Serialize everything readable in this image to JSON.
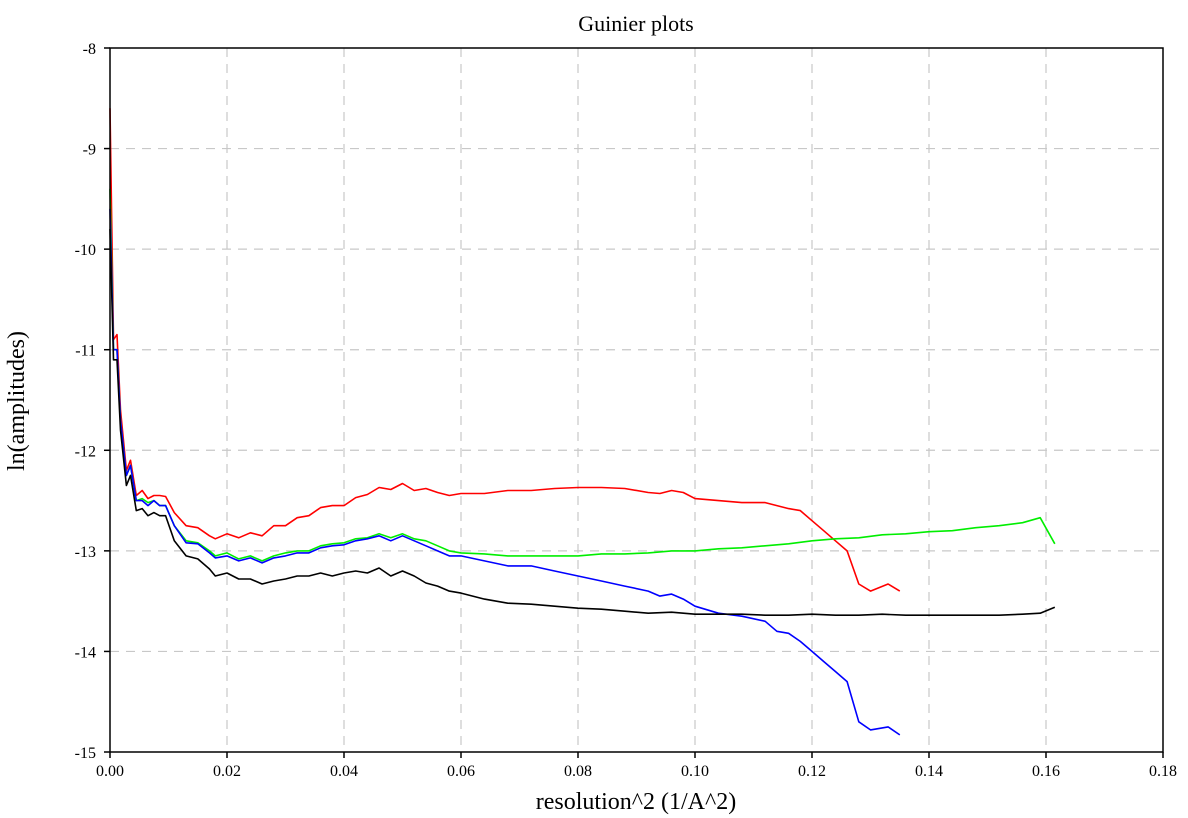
{
  "chart_data": {
    "type": "line",
    "title": "Guinier plots",
    "xlabel": "resolution^2 (1/A^2)",
    "ylabel": "ln(amplitudes)",
    "xlim": [
      0.0,
      0.18
    ],
    "ylim": [
      -15,
      -8
    ],
    "grid": true,
    "x_ticks": [
      "0.00",
      "0.02",
      "0.04",
      "0.06",
      "0.08",
      "0.10",
      "0.12",
      "0.14",
      "0.16",
      "0.18"
    ],
    "y_ticks": [
      "-8",
      "-9",
      "-10",
      "-11",
      "-12",
      "-13",
      "-14",
      "-15"
    ],
    "series": [
      {
        "color": "#ff0000",
        "points": [
          [
            0.0,
            -8.6
          ],
          [
            0.0006,
            -10.9
          ],
          [
            0.0012,
            -10.85
          ],
          [
            0.0018,
            -11.6
          ],
          [
            0.0028,
            -12.2
          ],
          [
            0.0035,
            -12.1
          ],
          [
            0.0045,
            -12.45
          ],
          [
            0.0055,
            -12.4
          ],
          [
            0.0065,
            -12.48
          ],
          [
            0.0075,
            -12.45
          ],
          [
            0.0085,
            -12.45
          ],
          [
            0.0095,
            -12.46
          ],
          [
            0.011,
            -12.62
          ],
          [
            0.013,
            -12.75
          ],
          [
            0.015,
            -12.77
          ],
          [
            0.017,
            -12.85
          ],
          [
            0.018,
            -12.88
          ],
          [
            0.02,
            -12.83
          ],
          [
            0.022,
            -12.87
          ],
          [
            0.024,
            -12.82
          ],
          [
            0.026,
            -12.85
          ],
          [
            0.028,
            -12.75
          ],
          [
            0.03,
            -12.75
          ],
          [
            0.032,
            -12.67
          ],
          [
            0.034,
            -12.65
          ],
          [
            0.036,
            -12.57
          ],
          [
            0.038,
            -12.55
          ],
          [
            0.04,
            -12.55
          ],
          [
            0.042,
            -12.47
          ],
          [
            0.044,
            -12.44
          ],
          [
            0.046,
            -12.37
          ],
          [
            0.048,
            -12.39
          ],
          [
            0.05,
            -12.33
          ],
          [
            0.052,
            -12.4
          ],
          [
            0.054,
            -12.38
          ],
          [
            0.056,
            -12.42
          ],
          [
            0.058,
            -12.45
          ],
          [
            0.06,
            -12.43
          ],
          [
            0.064,
            -12.43
          ],
          [
            0.068,
            -12.4
          ],
          [
            0.072,
            -12.4
          ],
          [
            0.076,
            -12.38
          ],
          [
            0.08,
            -12.37
          ],
          [
            0.084,
            -12.37
          ],
          [
            0.088,
            -12.38
          ],
          [
            0.092,
            -12.42
          ],
          [
            0.094,
            -12.43
          ],
          [
            0.096,
            -12.4
          ],
          [
            0.098,
            -12.42
          ],
          [
            0.1,
            -12.48
          ],
          [
            0.104,
            -12.5
          ],
          [
            0.108,
            -12.52
          ],
          [
            0.112,
            -12.52
          ],
          [
            0.114,
            -12.55
          ],
          [
            0.116,
            -12.58
          ],
          [
            0.118,
            -12.6
          ],
          [
            0.12,
            -12.7
          ],
          [
            0.122,
            -12.8
          ],
          [
            0.124,
            -12.9
          ],
          [
            0.126,
            -13.0
          ],
          [
            0.128,
            -13.33
          ],
          [
            0.13,
            -13.4
          ],
          [
            0.133,
            -13.33
          ],
          [
            0.135,
            -13.4
          ]
        ]
      },
      {
        "color": "#00ee00",
        "points": [
          [
            0.0,
            -9.4
          ],
          [
            0.0006,
            -11.0
          ],
          [
            0.0012,
            -11.0
          ],
          [
            0.0018,
            -11.7
          ],
          [
            0.0028,
            -12.25
          ],
          [
            0.0035,
            -12.15
          ],
          [
            0.0045,
            -12.5
          ],
          [
            0.0055,
            -12.48
          ],
          [
            0.0065,
            -12.52
          ],
          [
            0.0075,
            -12.5
          ],
          [
            0.0085,
            -12.55
          ],
          [
            0.0095,
            -12.55
          ],
          [
            0.011,
            -12.75
          ],
          [
            0.013,
            -12.9
          ],
          [
            0.015,
            -12.92
          ],
          [
            0.017,
            -13.0
          ],
          [
            0.018,
            -13.05
          ],
          [
            0.02,
            -13.02
          ],
          [
            0.022,
            -13.08
          ],
          [
            0.024,
            -13.05
          ],
          [
            0.026,
            -13.1
          ],
          [
            0.028,
            -13.05
          ],
          [
            0.03,
            -13.02
          ],
          [
            0.032,
            -13.0
          ],
          [
            0.034,
            -13.0
          ],
          [
            0.036,
            -12.95
          ],
          [
            0.038,
            -12.93
          ],
          [
            0.04,
            -12.92
          ],
          [
            0.042,
            -12.88
          ],
          [
            0.044,
            -12.87
          ],
          [
            0.046,
            -12.83
          ],
          [
            0.048,
            -12.87
          ],
          [
            0.05,
            -12.83
          ],
          [
            0.052,
            -12.88
          ],
          [
            0.054,
            -12.9
          ],
          [
            0.056,
            -12.95
          ],
          [
            0.058,
            -13.0
          ],
          [
            0.06,
            -13.02
          ],
          [
            0.064,
            -13.03
          ],
          [
            0.068,
            -13.05
          ],
          [
            0.072,
            -13.05
          ],
          [
            0.076,
            -13.05
          ],
          [
            0.08,
            -13.05
          ],
          [
            0.084,
            -13.03
          ],
          [
            0.088,
            -13.03
          ],
          [
            0.092,
            -13.02
          ],
          [
            0.096,
            -13.0
          ],
          [
            0.1,
            -13.0
          ],
          [
            0.104,
            -12.98
          ],
          [
            0.108,
            -12.97
          ],
          [
            0.112,
            -12.95
          ],
          [
            0.116,
            -12.93
          ],
          [
            0.12,
            -12.9
          ],
          [
            0.124,
            -12.88
          ],
          [
            0.128,
            -12.87
          ],
          [
            0.132,
            -12.84
          ],
          [
            0.136,
            -12.83
          ],
          [
            0.14,
            -12.81
          ],
          [
            0.144,
            -12.8
          ],
          [
            0.148,
            -12.77
          ],
          [
            0.152,
            -12.75
          ],
          [
            0.156,
            -12.72
          ],
          [
            0.159,
            -12.67
          ],
          [
            0.1615,
            -12.93
          ]
        ]
      },
      {
        "color": "#0000ff",
        "points": [
          [
            0.0,
            -9.6
          ],
          [
            0.0006,
            -11.0
          ],
          [
            0.0012,
            -11.0
          ],
          [
            0.0018,
            -11.7
          ],
          [
            0.0028,
            -12.25
          ],
          [
            0.0035,
            -12.15
          ],
          [
            0.0045,
            -12.5
          ],
          [
            0.0055,
            -12.5
          ],
          [
            0.0065,
            -12.55
          ],
          [
            0.0075,
            -12.5
          ],
          [
            0.0085,
            -12.55
          ],
          [
            0.0095,
            -12.55
          ],
          [
            0.011,
            -12.75
          ],
          [
            0.013,
            -12.92
          ],
          [
            0.015,
            -12.93
          ],
          [
            0.017,
            -13.02
          ],
          [
            0.018,
            -13.07
          ],
          [
            0.02,
            -13.05
          ],
          [
            0.022,
            -13.1
          ],
          [
            0.024,
            -13.07
          ],
          [
            0.026,
            -13.12
          ],
          [
            0.028,
            -13.07
          ],
          [
            0.03,
            -13.05
          ],
          [
            0.032,
            -13.02
          ],
          [
            0.034,
            -13.02
          ],
          [
            0.036,
            -12.97
          ],
          [
            0.038,
            -12.95
          ],
          [
            0.04,
            -12.94
          ],
          [
            0.042,
            -12.9
          ],
          [
            0.044,
            -12.88
          ],
          [
            0.046,
            -12.85
          ],
          [
            0.048,
            -12.9
          ],
          [
            0.05,
            -12.85
          ],
          [
            0.052,
            -12.9
          ],
          [
            0.054,
            -12.95
          ],
          [
            0.056,
            -13.0
          ],
          [
            0.058,
            -13.05
          ],
          [
            0.06,
            -13.05
          ],
          [
            0.064,
            -13.1
          ],
          [
            0.068,
            -13.15
          ],
          [
            0.072,
            -13.15
          ],
          [
            0.076,
            -13.2
          ],
          [
            0.08,
            -13.25
          ],
          [
            0.084,
            -13.3
          ],
          [
            0.088,
            -13.35
          ],
          [
            0.092,
            -13.4
          ],
          [
            0.094,
            -13.45
          ],
          [
            0.096,
            -13.43
          ],
          [
            0.098,
            -13.48
          ],
          [
            0.1,
            -13.55
          ],
          [
            0.104,
            -13.62
          ],
          [
            0.108,
            -13.65
          ],
          [
            0.112,
            -13.7
          ],
          [
            0.114,
            -13.8
          ],
          [
            0.116,
            -13.82
          ],
          [
            0.118,
            -13.9
          ],
          [
            0.12,
            -14.0
          ],
          [
            0.122,
            -14.1
          ],
          [
            0.124,
            -14.2
          ],
          [
            0.126,
            -14.3
          ],
          [
            0.128,
            -14.7
          ],
          [
            0.13,
            -14.78
          ],
          [
            0.133,
            -14.75
          ],
          [
            0.135,
            -14.83
          ]
        ]
      },
      {
        "color": "#000000",
        "points": [
          [
            0.0,
            -9.8
          ],
          [
            0.0006,
            -11.1
          ],
          [
            0.0012,
            -11.1
          ],
          [
            0.0018,
            -11.8
          ],
          [
            0.0028,
            -12.35
          ],
          [
            0.0035,
            -12.25
          ],
          [
            0.0045,
            -12.6
          ],
          [
            0.0055,
            -12.58
          ],
          [
            0.0065,
            -12.65
          ],
          [
            0.0075,
            -12.62
          ],
          [
            0.0085,
            -12.65
          ],
          [
            0.0095,
            -12.65
          ],
          [
            0.011,
            -12.9
          ],
          [
            0.013,
            -13.05
          ],
          [
            0.015,
            -13.08
          ],
          [
            0.017,
            -13.18
          ],
          [
            0.018,
            -13.25
          ],
          [
            0.02,
            -13.22
          ],
          [
            0.022,
            -13.28
          ],
          [
            0.024,
            -13.28
          ],
          [
            0.026,
            -13.33
          ],
          [
            0.028,
            -13.3
          ],
          [
            0.03,
            -13.28
          ],
          [
            0.032,
            -13.25
          ],
          [
            0.034,
            -13.25
          ],
          [
            0.036,
            -13.22
          ],
          [
            0.038,
            -13.25
          ],
          [
            0.04,
            -13.22
          ],
          [
            0.042,
            -13.2
          ],
          [
            0.044,
            -13.22
          ],
          [
            0.046,
            -13.17
          ],
          [
            0.048,
            -13.25
          ],
          [
            0.05,
            -13.2
          ],
          [
            0.052,
            -13.25
          ],
          [
            0.054,
            -13.32
          ],
          [
            0.056,
            -13.35
          ],
          [
            0.058,
            -13.4
          ],
          [
            0.06,
            -13.42
          ],
          [
            0.064,
            -13.48
          ],
          [
            0.068,
            -13.52
          ],
          [
            0.072,
            -13.53
          ],
          [
            0.076,
            -13.55
          ],
          [
            0.08,
            -13.57
          ],
          [
            0.084,
            -13.58
          ],
          [
            0.088,
            -13.6
          ],
          [
            0.092,
            -13.62
          ],
          [
            0.096,
            -13.61
          ],
          [
            0.1,
            -13.63
          ],
          [
            0.104,
            -13.63
          ],
          [
            0.108,
            -13.63
          ],
          [
            0.112,
            -13.64
          ],
          [
            0.116,
            -13.64
          ],
          [
            0.12,
            -13.63
          ],
          [
            0.124,
            -13.64
          ],
          [
            0.128,
            -13.64
          ],
          [
            0.132,
            -13.63
          ],
          [
            0.136,
            -13.64
          ],
          [
            0.14,
            -13.64
          ],
          [
            0.144,
            -13.64
          ],
          [
            0.148,
            -13.64
          ],
          [
            0.152,
            -13.64
          ],
          [
            0.156,
            -13.63
          ],
          [
            0.159,
            -13.62
          ],
          [
            0.1615,
            -13.56
          ]
        ]
      }
    ]
  }
}
